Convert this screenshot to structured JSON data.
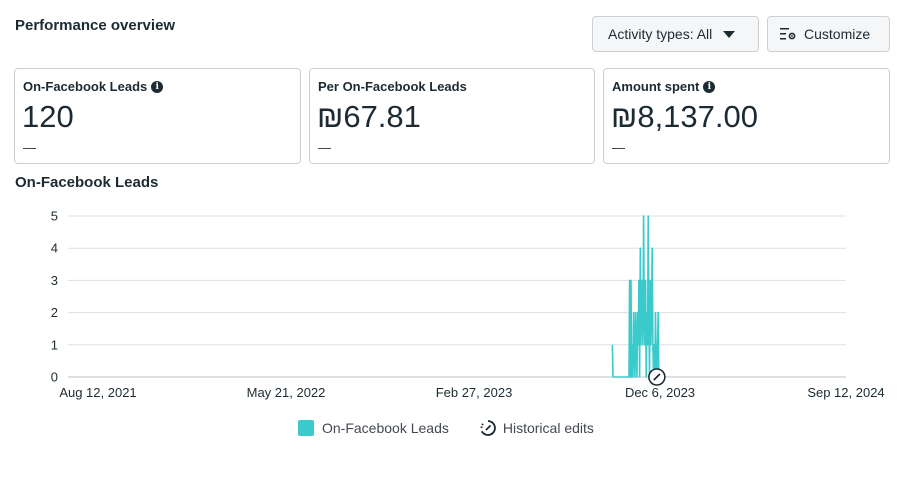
{
  "header": {
    "title": "Performance overview",
    "activity_button": "Activity types: All",
    "customize_button": "Customize"
  },
  "metrics": [
    {
      "label": "On-Facebook Leads",
      "value": "120",
      "change": "—",
      "has_info": true
    },
    {
      "label": "Per On-Facebook Leads",
      "value": "₪67.81",
      "change": "—",
      "has_info": false
    },
    {
      "label": "Amount spent",
      "value": "₪8,137.00",
      "change": "—",
      "has_info": true
    }
  ],
  "chart": {
    "title": "On-Facebook Leads",
    "legend": {
      "series": "On-Facebook Leads",
      "edits": "Historical edits"
    }
  },
  "colors": {
    "series": "#3bcacb",
    "grid": "#dddfe2",
    "text": "#1c2b33"
  },
  "chart_data": {
    "type": "line",
    "title": "On-Facebook Leads",
    "xlabel": "",
    "ylabel": "",
    "ylim": [
      0,
      5
    ],
    "y_ticks": [
      "0",
      "1",
      "2",
      "3",
      "4",
      "5"
    ],
    "x_tick_labels": [
      "Aug 12, 2021",
      "May 21, 2022",
      "Feb 27, 2023",
      "Dec 6, 2023",
      "Sep 12, 2024"
    ],
    "x_range_days": [
      0,
      1127
    ],
    "series": [
      {
        "name": "On-Facebook Leads",
        "points": [
          [
            775,
            1
          ],
          [
            776,
            0
          ],
          [
            788,
            0
          ],
          [
            789,
            0
          ],
          [
            790,
            0
          ],
          [
            792,
            0
          ],
          [
            793,
            0
          ],
          [
            800,
            0
          ],
          [
            801,
            3
          ],
          [
            802,
            0
          ],
          [
            803,
            3
          ],
          [
            804,
            0
          ],
          [
            805,
            1
          ],
          [
            806,
            0
          ],
          [
            807,
            2
          ],
          [
            808,
            1
          ],
          [
            809,
            0
          ],
          [
            810,
            2
          ],
          [
            811,
            1
          ],
          [
            812,
            0
          ],
          [
            813,
            2
          ],
          [
            814,
            1
          ],
          [
            815,
            3
          ],
          [
            816,
            0
          ],
          [
            817,
            4
          ],
          [
            818,
            1
          ],
          [
            819,
            2
          ],
          [
            820,
            3
          ],
          [
            821,
            1
          ],
          [
            822,
            5
          ],
          [
            823,
            2
          ],
          [
            824,
            1
          ],
          [
            825,
            3
          ],
          [
            826,
            0
          ],
          [
            827,
            2
          ],
          [
            828,
            1
          ],
          [
            829,
            5
          ],
          [
            830,
            2
          ],
          [
            831,
            0
          ],
          [
            832,
            3
          ],
          [
            833,
            1
          ],
          [
            834,
            2
          ],
          [
            835,
            4
          ],
          [
            836,
            1
          ],
          [
            837,
            0
          ],
          [
            838,
            1
          ],
          [
            839,
            0
          ],
          [
            840,
            2
          ],
          [
            841,
            0
          ],
          [
            842,
            0
          ],
          [
            843,
            1
          ],
          [
            844,
            2
          ],
          [
            845,
            0
          ]
        ]
      }
    ],
    "annotations": [
      {
        "type": "historical-edit",
        "x": 842
      }
    ],
    "grid": true,
    "legend_position": "bottom-center"
  }
}
